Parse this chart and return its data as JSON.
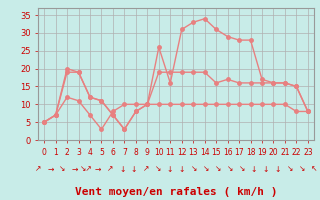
{
  "title": "",
  "xlabel": "Vent moyen/en rafales ( km/h )",
  "background_color": "#c8ece8",
  "grid_color": "#b0b0b0",
  "line_color": "#e88080",
  "ylim": [
    0,
    37
  ],
  "xlim": [
    -0.5,
    23.5
  ],
  "yticks": [
    0,
    5,
    10,
    15,
    20,
    25,
    30,
    35
  ],
  "xticks": [
    0,
    1,
    2,
    3,
    4,
    5,
    6,
    7,
    8,
    9,
    10,
    11,
    12,
    13,
    14,
    15,
    16,
    17,
    18,
    19,
    20,
    21,
    22,
    23
  ],
  "series_gust_x": [
    0,
    1,
    2,
    3,
    4,
    5,
    6,
    7,
    8,
    9,
    10,
    11,
    12,
    13,
    14,
    15,
    16,
    17,
    18,
    19,
    20,
    21,
    22,
    23
  ],
  "series_gust_y": [
    5,
    7,
    20,
    19,
    12,
    11,
    7,
    3,
    8,
    10,
    26,
    16,
    31,
    33,
    34,
    31,
    29,
    28,
    28,
    17,
    16,
    16,
    15,
    8
  ],
  "series_avg_x": [
    0,
    1,
    2,
    3,
    4,
    5,
    6,
    7,
    8,
    9,
    10,
    11,
    12,
    13,
    14,
    15,
    16,
    17,
    18,
    19,
    20,
    21,
    22,
    23
  ],
  "series_avg_y": [
    5,
    7,
    19,
    19,
    12,
    11,
    7,
    3,
    8,
    10,
    19,
    19,
    19,
    19,
    19,
    16,
    17,
    16,
    16,
    16,
    16,
    16,
    15,
    8
  ],
  "series_flat_x": [
    0,
    1,
    2,
    3,
    4,
    5,
    6,
    7,
    8,
    9,
    10,
    11,
    12,
    13,
    14,
    15,
    16,
    17,
    18,
    19,
    20,
    21,
    22,
    23
  ],
  "series_flat_y": [
    5,
    7,
    12,
    11,
    7,
    3,
    8,
    10,
    10,
    10,
    10,
    10,
    10,
    10,
    10,
    10,
    10,
    10,
    10,
    10,
    10,
    10,
    8,
    8
  ],
  "xlabel_fontsize": 8,
  "ytick_fontsize": 6,
  "xtick_fontsize": 5.5,
  "linewidth": 1.0,
  "markersize": 2.5,
  "arrows": [
    "↗",
    "→",
    "↘",
    "→",
    "↘↗",
    "→",
    "↗",
    "↓",
    "↓",
    "↗",
    "↘",
    "↓",
    "↓",
    "↘",
    "↘",
    "↘",
    "↘",
    "↘",
    "↓",
    "↓",
    "↓",
    "↘",
    "↘",
    "↖"
  ]
}
